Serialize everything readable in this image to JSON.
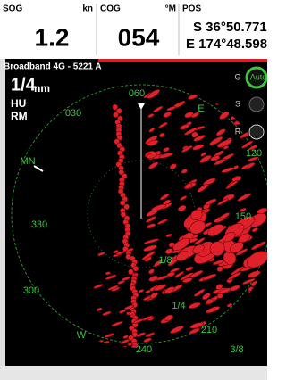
{
  "status_bar": {
    "sog": {
      "label": "SOG",
      "unit": "kn",
      "value": "1.2"
    },
    "cog": {
      "label": "COG",
      "unit": "°M",
      "value": "054"
    },
    "pos": {
      "label": "POS",
      "lat": "S 36°50.771'",
      "lon": "E 174°48.598'"
    }
  },
  "radar": {
    "source": "Broadband 4G - 5221 A",
    "range": "1/4",
    "range_unit": "nm",
    "orientation": "HU",
    "motion": "RM",
    "bearings": [
      "060",
      "030",
      "E",
      "MN",
      "330",
      "300",
      "W",
      "240",
      "210",
      "150",
      "120"
    ],
    "range_rings": [
      "1/8",
      "1/4",
      "3/8"
    ]
  },
  "controls": {
    "gain": "G",
    "gain_mode": "Auto",
    "sea": "S",
    "rain": "R"
  }
}
